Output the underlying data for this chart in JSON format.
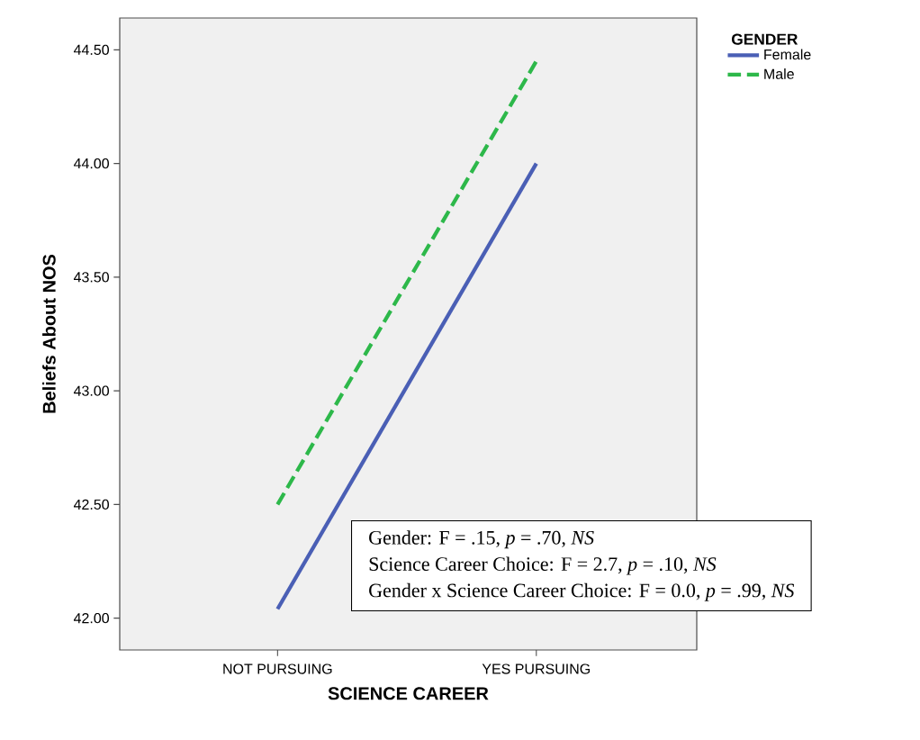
{
  "chart_data": {
    "type": "line",
    "xlabel": "SCIENCE CAREER",
    "ylabel": "Beliefs About NOS",
    "legend_title": "GENDER",
    "categories": [
      "NOT PURSUING",
      "YES PURSUING"
    ],
    "series": [
      {
        "name": "Female",
        "color": "#4a5fb5",
        "values": [
          42.04,
          44.0
        ],
        "line_style": "solid"
      },
      {
        "name": "Male",
        "color": "#2db84a",
        "values": [
          42.5,
          44.45
        ],
        "line_style": "dashed"
      }
    ],
    "ylim": [
      41.86,
      44.64
    ],
    "yticks": [
      {
        "value": 42.0,
        "label": "42.00"
      },
      {
        "value": 42.5,
        "label": "42.50"
      },
      {
        "value": 43.0,
        "label": "43.00"
      },
      {
        "value": 43.5,
        "label": "43.50"
      },
      {
        "value": 44.0,
        "label": "44.00"
      },
      {
        "value": 44.5,
        "label": "44.50"
      }
    ],
    "grid": false,
    "legend": "top right",
    "marker": "none",
    "annotations": [
      "Gender:  F = .15, *p* = .70, *NS*",
      "Science Career Choice: F = 2.7, *p* = .10, *NS*",
      "Gender x Science Career Choice: F = 0.0, *p* = .99, *NS*"
    ]
  }
}
